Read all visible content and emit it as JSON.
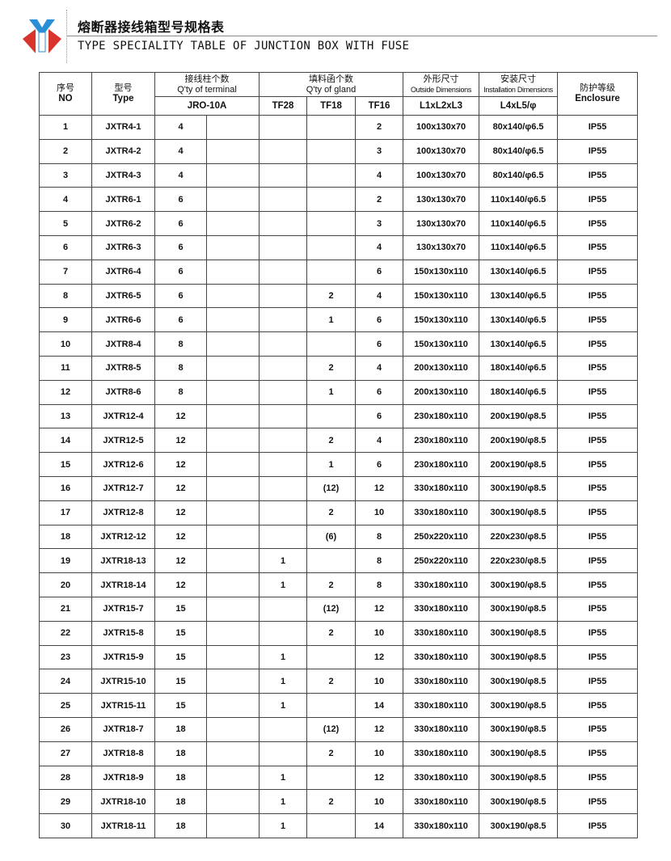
{
  "header": {
    "title_cn": "熔断器接线箱型号规格表",
    "title_en": "TYPE SPECIALITY TABLE OF JUNCTION BOX WITH FUSE",
    "logo_colors": {
      "blue": "#2a8fd6",
      "red": "#d9342b"
    }
  },
  "table": {
    "columns": {
      "no_cn": "序号",
      "no_en": "NO",
      "type_cn": "型号",
      "type_en": "Type",
      "terminal_cn": "接线柱个数",
      "terminal_en": "Q'ty of terminal",
      "terminal_sub": "JRO-10A",
      "gland_cn": "填料函个数",
      "gland_en": "Q'ty of gland",
      "gland_sub": [
        "TF28",
        "TF18",
        "TF16"
      ],
      "outside_cn": "外形尺寸",
      "outside_en": "Outside Dimensions",
      "outside_sub": "L1xL2xL3",
      "install_cn": "安装尺寸",
      "install_en": "Installation Dimensions",
      "install_sub": "L4xL5/φ",
      "enclosure_cn": "防护等级",
      "enclosure_en": "Enclosure"
    },
    "rows": [
      [
        "1",
        "JXTR4-1",
        "4",
        "",
        "",
        "",
        "2",
        "100x130x70",
        "80x140/φ6.5",
        "IP55"
      ],
      [
        "2",
        "JXTR4-2",
        "4",
        "",
        "",
        "",
        "3",
        "100x130x70",
        "80x140/φ6.5",
        "IP55"
      ],
      [
        "3",
        "JXTR4-3",
        "4",
        "",
        "",
        "",
        "4",
        "100x130x70",
        "80x140/φ6.5",
        "IP55"
      ],
      [
        "4",
        "JXTR6-1",
        "6",
        "",
        "",
        "",
        "2",
        "130x130x70",
        "110x140/φ6.5",
        "IP55"
      ],
      [
        "5",
        "JXTR6-2",
        "6",
        "",
        "",
        "",
        "3",
        "130x130x70",
        "110x140/φ6.5",
        "IP55"
      ],
      [
        "6",
        "JXTR6-3",
        "6",
        "",
        "",
        "",
        "4",
        "130x130x70",
        "110x140/φ6.5",
        "IP55"
      ],
      [
        "7",
        "JXTR6-4",
        "6",
        "",
        "",
        "",
        "6",
        "150x130x110",
        "130x140/φ6.5",
        "IP55"
      ],
      [
        "8",
        "JXTR6-5",
        "6",
        "",
        "",
        "2",
        "4",
        "150x130x110",
        "130x140/φ6.5",
        "IP55"
      ],
      [
        "9",
        "JXTR6-6",
        "6",
        "",
        "",
        "1",
        "6",
        "150x130x110",
        "130x140/φ6.5",
        "IP55"
      ],
      [
        "10",
        "JXTR8-4",
        "8",
        "",
        "",
        "",
        "6",
        "150x130x110",
        "130x140/φ6.5",
        "IP55"
      ],
      [
        "11",
        "JXTR8-5",
        "8",
        "",
        "",
        "2",
        "4",
        "200x130x110",
        "180x140/φ6.5",
        "IP55"
      ],
      [
        "12",
        "JXTR8-6",
        "8",
        "",
        "",
        "1",
        "6",
        "200x130x110",
        "180x140/φ6.5",
        "IP55"
      ],
      [
        "13",
        "JXTR12-4",
        "12",
        "",
        "",
        "",
        "6",
        "230x180x110",
        "200x190/φ8.5",
        "IP55"
      ],
      [
        "14",
        "JXTR12-5",
        "12",
        "",
        "",
        "2",
        "4",
        "230x180x110",
        "200x190/φ8.5",
        "IP55"
      ],
      [
        "15",
        "JXTR12-6",
        "12",
        "",
        "",
        "1",
        "6",
        "230x180x110",
        "200x190/φ8.5",
        "IP55"
      ],
      [
        "16",
        "JXTR12-7",
        "12",
        "",
        "",
        "(12)",
        "12",
        "330x180x110",
        "300x190/φ8.5",
        "IP55"
      ],
      [
        "17",
        "JXTR12-8",
        "12",
        "",
        "",
        "2",
        "10",
        "330x180x110",
        "300x190/φ8.5",
        "IP55"
      ],
      [
        "18",
        "JXTR12-12",
        "12",
        "",
        "",
        "(6)",
        "8",
        "250x220x110",
        "220x230/φ8.5",
        "IP55"
      ],
      [
        "19",
        "JXTR18-13",
        "12",
        "",
        "1",
        "",
        "8",
        "250x220x110",
        "220x230/φ8.5",
        "IP55"
      ],
      [
        "20",
        "JXTR18-14",
        "12",
        "",
        "1",
        "2",
        "8",
        "330x180x110",
        "300x190/φ8.5",
        "IP55"
      ],
      [
        "21",
        "JXTR15-7",
        "15",
        "",
        "",
        "(12)",
        "12",
        "330x180x110",
        "300x190/φ8.5",
        "IP55"
      ],
      [
        "22",
        "JXTR15-8",
        "15",
        "",
        "",
        "2",
        "10",
        "330x180x110",
        "300x190/φ8.5",
        "IP55"
      ],
      [
        "23",
        "JXTR15-9",
        "15",
        "",
        "1",
        "",
        "12",
        "330x180x110",
        "300x190/φ8.5",
        "IP55"
      ],
      [
        "24",
        "JXTR15-10",
        "15",
        "",
        "1",
        "2",
        "10",
        "330x180x110",
        "300x190/φ8.5",
        "IP55"
      ],
      [
        "25",
        "JXTR15-11",
        "15",
        "",
        "1",
        "",
        "14",
        "330x180x110",
        "300x190/φ8.5",
        "IP55"
      ],
      [
        "26",
        "JXTR18-7",
        "18",
        "",
        "",
        "(12)",
        "12",
        "330x180x110",
        "300x190/φ8.5",
        "IP55"
      ],
      [
        "27",
        "JXTR18-8",
        "18",
        "",
        "",
        "2",
        "10",
        "330x180x110",
        "300x190/φ8.5",
        "IP55"
      ],
      [
        "28",
        "JXTR18-9",
        "18",
        "",
        "1",
        "",
        "12",
        "330x180x110",
        "300x190/φ8.5",
        "IP55"
      ],
      [
        "29",
        "JXTR18-10",
        "18",
        "",
        "1",
        "2",
        "10",
        "330x180x110",
        "300x190/φ8.5",
        "IP55"
      ],
      [
        "30",
        "JXTR18-11",
        "18",
        "",
        "1",
        "",
        "14",
        "330x180x110",
        "300x190/φ8.5",
        "IP55"
      ]
    ]
  }
}
